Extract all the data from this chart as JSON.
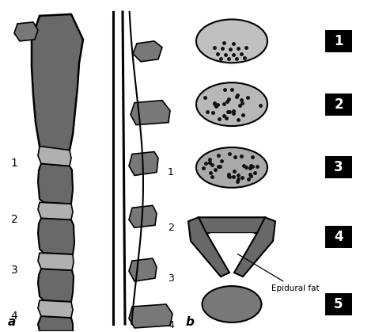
{
  "bg_color": "#ffffff",
  "vertebra_color": "#696969",
  "disc_color": "#b0b0b0",
  "process_color": "#696969",
  "oval_grade1_color": "#c0c0c0",
  "oval_grade2_color": "#b8b8b8",
  "oval_grade3_color": "#b0b0b0",
  "oval_grade5_color": "#787878",
  "v_shape_color": "#686868",
  "dot_color": "#111111",
  "black_box_color": "#000000",
  "white_text_color": "#ffffff",
  "label_a": "a",
  "label_b": "b",
  "grade_labels": [
    "1",
    "2",
    "3",
    "4",
    "5"
  ],
  "epidural_fat_label": "Epidural fat",
  "line_color": "#000000"
}
